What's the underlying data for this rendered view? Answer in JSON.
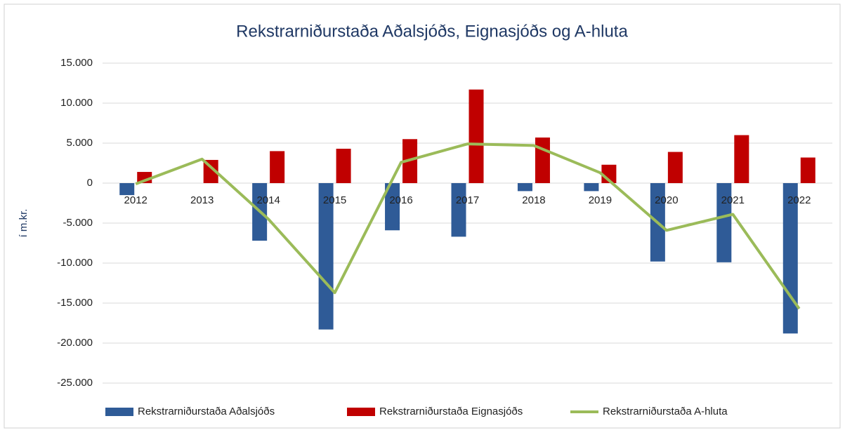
{
  "chart_data": {
    "type": "bar_line",
    "title": "Rekstrarniðurstaða Aðalsjóðs, Eignasjóðs og A-hluta",
    "y_label": "í m.kr.",
    "categories": [
      "2012",
      "2013",
      "2014",
      "2015",
      "2016",
      "2017",
      "2018",
      "2019",
      "2020",
      "2021",
      "2022"
    ],
    "series": [
      {
        "name": "Rekstrarniðurstaða Aðalsjóðs",
        "type": "bar",
        "color": "#2f5b97",
        "values": [
          -1500,
          0,
          -7200,
          -18300,
          -5900,
          -6700,
          -1000,
          -1000,
          -9800,
          -9900,
          -18800
        ]
      },
      {
        "name": "Rekstrarniðurstaða Eignasjóðs",
        "type": "bar",
        "color": "#c00000",
        "values": [
          1400,
          2900,
          4000,
          4300,
          5500,
          11700,
          5700,
          2300,
          3900,
          6000,
          3200
        ]
      },
      {
        "name": "Rekstrarniðurstaða A-hluta",
        "type": "line",
        "color": "#9bbb59",
        "values": [
          -100,
          3000,
          -4500,
          -13700,
          2600,
          4900,
          4700,
          1300,
          -5900,
          -3900,
          -15700
        ]
      }
    ],
    "ylim": [
      -25000,
      15000
    ],
    "yticks": [
      {
        "value": -25000,
        "label": "-25.000"
      },
      {
        "value": -20000,
        "label": "-20.000"
      },
      {
        "value": -15000,
        "label": "-15.000"
      },
      {
        "value": -10000,
        "label": "-10.000"
      },
      {
        "value": -5000,
        "label": "-5.000"
      },
      0,
      {
        "value": 5000,
        "label": "5.000"
      },
      {
        "value": 10000,
        "label": "10.000"
      },
      {
        "value": 15000,
        "label": "15.000"
      }
    ],
    "grid": true,
    "legend": "bottom"
  }
}
